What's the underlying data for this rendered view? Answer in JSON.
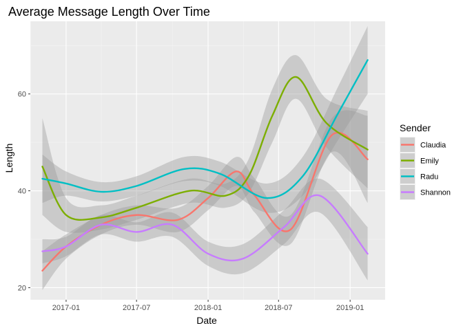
{
  "chart_data": {
    "type": "line",
    "title": "Average Message Length Over Time",
    "xlabel": "Date",
    "ylabel": "Length",
    "x_range": [
      "2016-10-01",
      "2019-04-01"
    ],
    "ylim": [
      17.5,
      75
    ],
    "x_ticks": [
      {
        "date": "2017-01-01",
        "label": "2017-01"
      },
      {
        "date": "2017-07-01",
        "label": "2017-07"
      },
      {
        "date": "2018-01-01",
        "label": "2018-01"
      },
      {
        "date": "2018-07-01",
        "label": "2018-07"
      },
      {
        "date": "2019-01-01",
        "label": "2019-01"
      }
    ],
    "y_ticks": [
      20,
      40,
      60
    ],
    "grid": true,
    "smoothed_with_confidence_band": true,
    "legend": {
      "title": "Sender",
      "placement": "right"
    },
    "series": [
      {
        "name": "Claudia",
        "color": "#F8766D",
        "points": [
          {
            "x": "2016-11-01",
            "y": 23.5,
            "lo": 19.5,
            "hi": 27.5
          },
          {
            "x": "2017-01-01",
            "y": 28.5,
            "lo": 26.0,
            "hi": 31.0
          },
          {
            "x": "2017-04-01",
            "y": 33.0,
            "lo": 31.0,
            "hi": 35.0
          },
          {
            "x": "2017-07-01",
            "y": 35.0,
            "lo": 33.0,
            "hi": 37.0
          },
          {
            "x": "2017-10-15",
            "y": 34.0,
            "lo": 31.5,
            "hi": 36.5
          },
          {
            "x": "2018-01-01",
            "y": 38.5,
            "lo": 36.0,
            "hi": 41.0
          },
          {
            "x": "2018-03-15",
            "y": 44.0,
            "lo": 41.0,
            "hi": 47.0
          },
          {
            "x": "2018-05-01",
            "y": 39.0,
            "lo": 35.5,
            "hi": 42.5
          },
          {
            "x": "2018-08-01",
            "y": 32.0,
            "lo": 29.0,
            "hi": 35.0
          },
          {
            "x": "2018-11-15",
            "y": 51.5,
            "lo": 48.0,
            "hi": 55.0
          },
          {
            "x": "2019-02-15",
            "y": 46.5,
            "lo": 37.5,
            "hi": 55.5
          }
        ]
      },
      {
        "name": "Emily",
        "color": "#7CAE00",
        "points": [
          {
            "x": "2016-11-01",
            "y": 45.0,
            "lo": 35.0,
            "hi": 55.0
          },
          {
            "x": "2017-01-01",
            "y": 35.0,
            "lo": 31.5,
            "hi": 38.5
          },
          {
            "x": "2017-04-01",
            "y": 34.5,
            "lo": 32.0,
            "hi": 37.0
          },
          {
            "x": "2017-07-01",
            "y": 36.5,
            "lo": 34.0,
            "hi": 39.0
          },
          {
            "x": "2017-11-15",
            "y": 40.0,
            "lo": 37.5,
            "hi": 42.5
          },
          {
            "x": "2018-02-15",
            "y": 39.0,
            "lo": 36.5,
            "hi": 41.5
          },
          {
            "x": "2018-04-15",
            "y": 43.0,
            "lo": 39.5,
            "hi": 46.5
          },
          {
            "x": "2018-06-15",
            "y": 55.5,
            "lo": 50.0,
            "hi": 61.0
          },
          {
            "x": "2018-08-15",
            "y": 63.5,
            "lo": 59.0,
            "hi": 68.0
          },
          {
            "x": "2018-11-01",
            "y": 54.0,
            "lo": 49.0,
            "hi": 59.0
          },
          {
            "x": "2019-02-15",
            "y": 48.5,
            "lo": 40.5,
            "hi": 56.5
          }
        ]
      },
      {
        "name": "Radu",
        "color": "#00BFC4",
        "points": [
          {
            "x": "2016-11-01",
            "y": 42.5,
            "lo": 37.5,
            "hi": 47.5
          },
          {
            "x": "2017-01-01",
            "y": 41.5,
            "lo": 39.0,
            "hi": 44.0
          },
          {
            "x": "2017-04-01",
            "y": 39.8,
            "lo": 37.8,
            "hi": 41.8
          },
          {
            "x": "2017-07-01",
            "y": 41.0,
            "lo": 39.0,
            "hi": 43.0
          },
          {
            "x": "2017-11-01",
            "y": 44.5,
            "lo": 42.0,
            "hi": 47.0
          },
          {
            "x": "2018-02-01",
            "y": 43.5,
            "lo": 41.0,
            "hi": 46.0
          },
          {
            "x": "2018-06-01",
            "y": 38.5,
            "lo": 35.5,
            "hi": 41.5
          },
          {
            "x": "2018-09-01",
            "y": 43.0,
            "lo": 39.0,
            "hi": 47.0
          },
          {
            "x": "2018-12-01",
            "y": 56.0,
            "lo": 50.5,
            "hi": 61.5
          },
          {
            "x": "2019-02-15",
            "y": 67.0,
            "lo": 60.0,
            "hi": 74.0
          }
        ]
      },
      {
        "name": "Shannon",
        "color": "#C77CFF",
        "points": [
          {
            "x": "2016-11-01",
            "y": 27.5,
            "lo": 25.0,
            "hi": 30.0
          },
          {
            "x": "2017-01-01",
            "y": 28.5,
            "lo": 26.5,
            "hi": 30.5
          },
          {
            "x": "2017-04-01",
            "y": 33.0,
            "lo": 31.0,
            "hi": 35.0
          },
          {
            "x": "2017-07-01",
            "y": 31.5,
            "lo": 29.5,
            "hi": 33.5
          },
          {
            "x": "2017-10-01",
            "y": 33.0,
            "lo": 30.5,
            "hi": 35.5
          },
          {
            "x": "2018-01-01",
            "y": 27.0,
            "lo": 24.5,
            "hi": 29.5
          },
          {
            "x": "2018-04-01",
            "y": 26.0,
            "lo": 23.0,
            "hi": 29.0
          },
          {
            "x": "2018-07-15",
            "y": 32.5,
            "lo": 29.0,
            "hi": 36.0
          },
          {
            "x": "2018-10-15",
            "y": 39.0,
            "lo": 35.5,
            "hi": 42.5
          },
          {
            "x": "2019-02-15",
            "y": 27.0,
            "lo": 21.5,
            "hi": 32.5
          }
        ]
      }
    ]
  }
}
